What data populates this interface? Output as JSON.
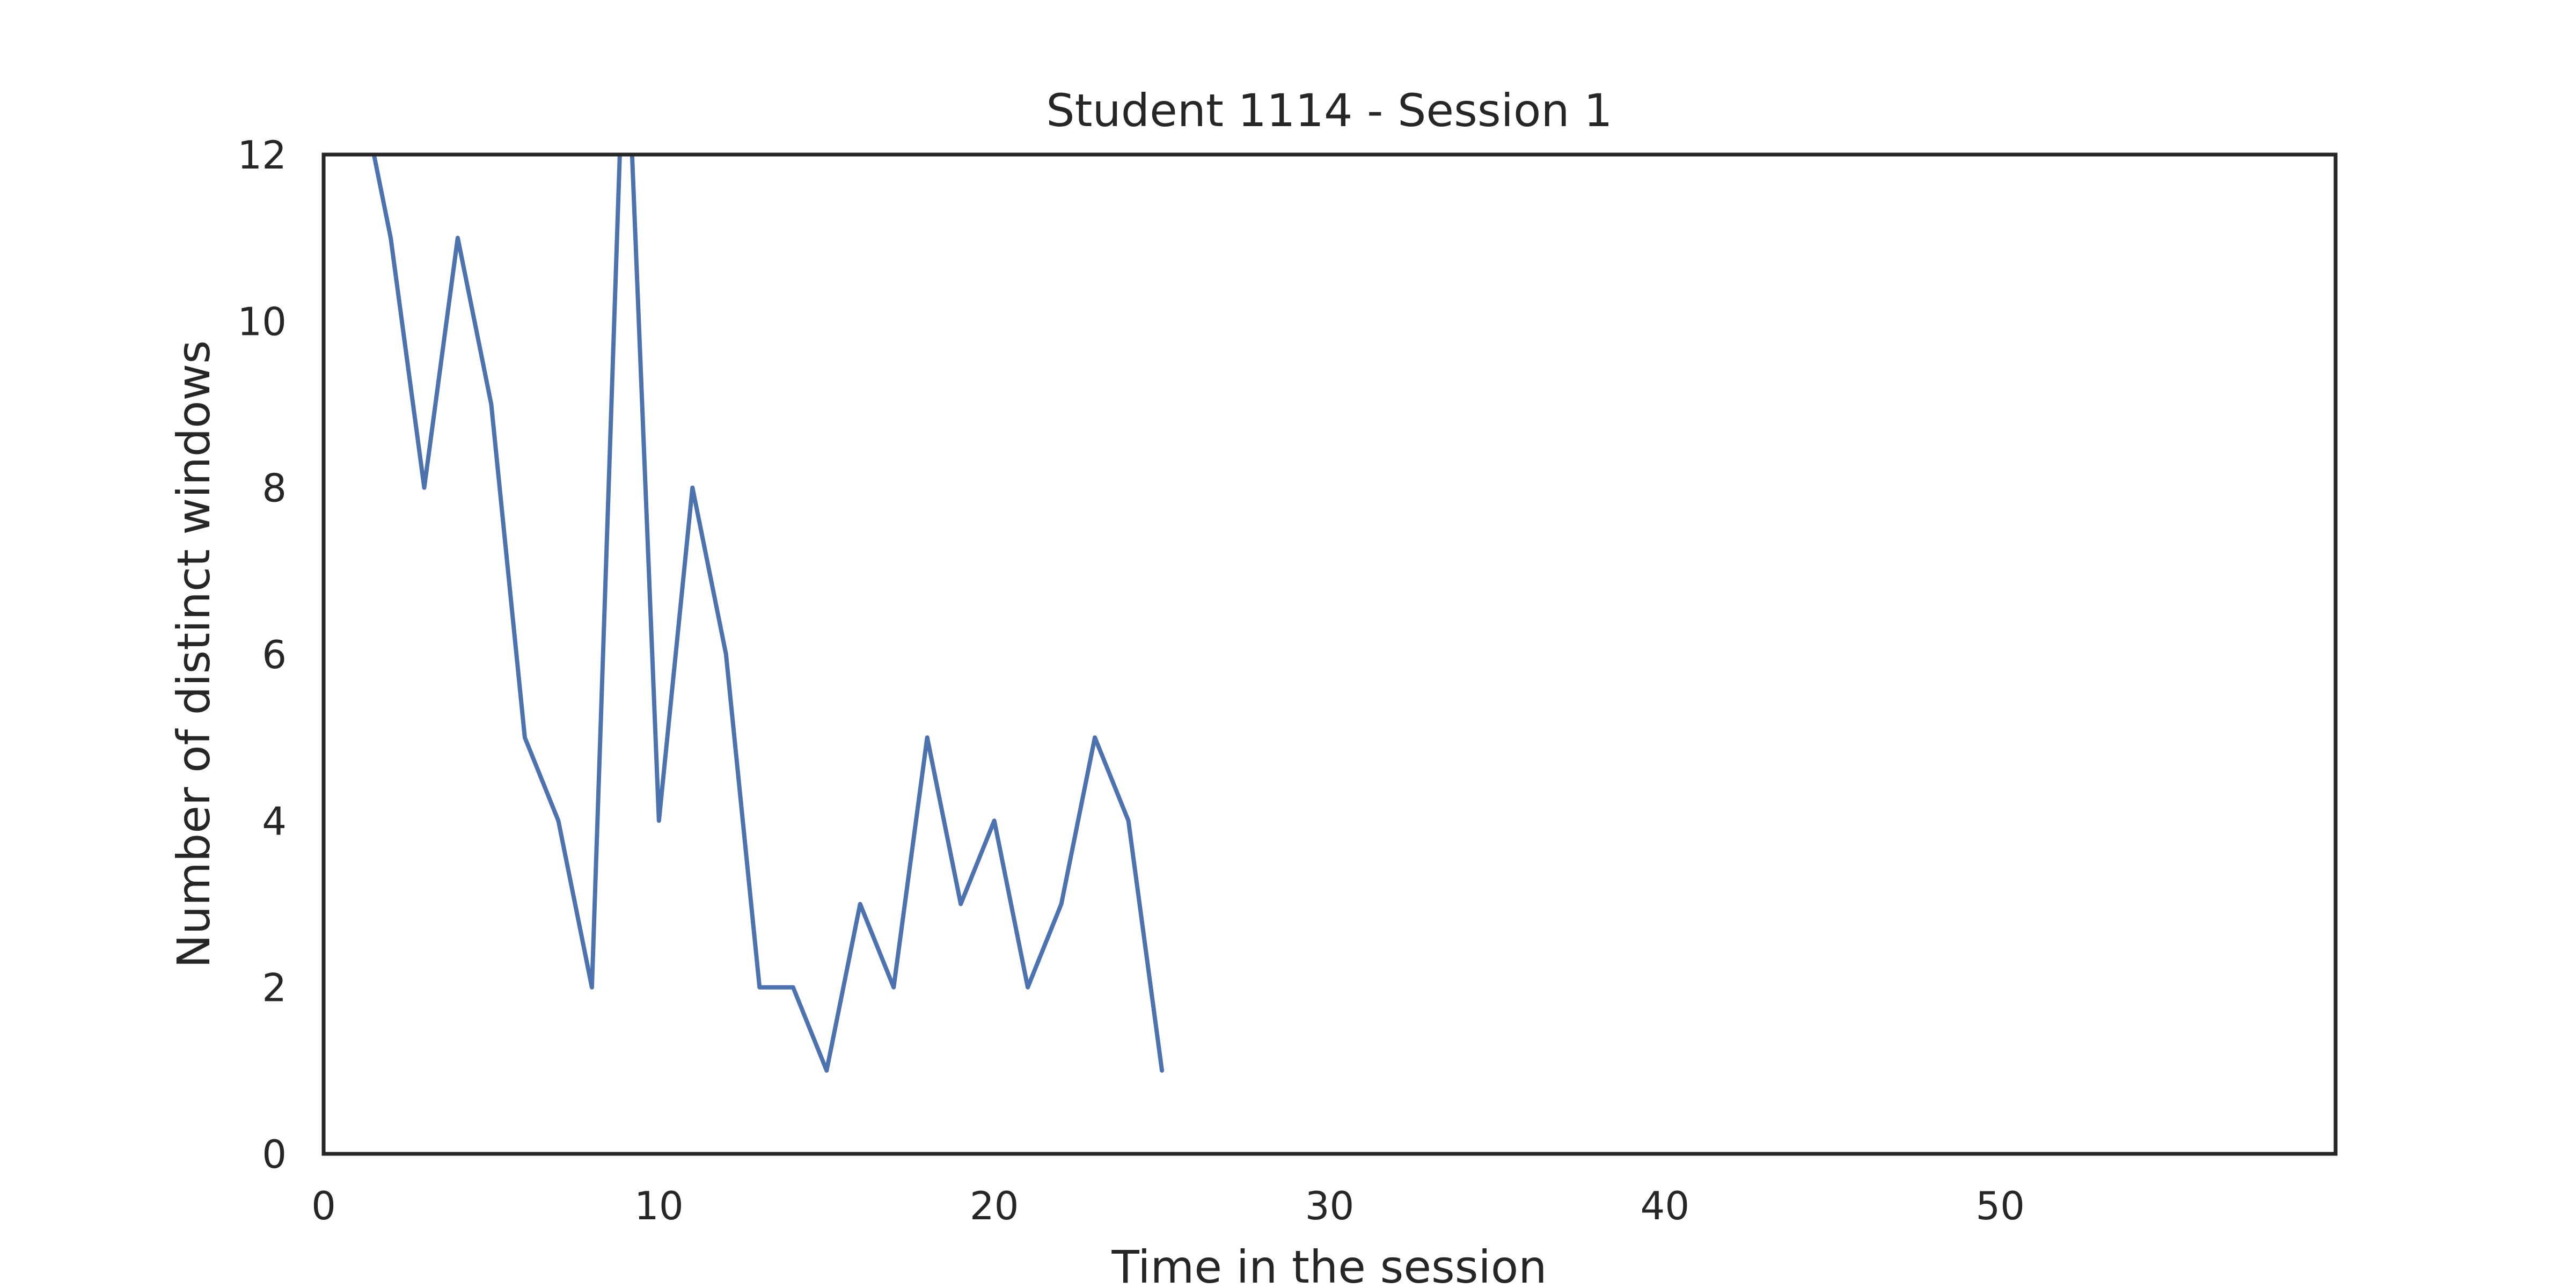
{
  "chart_data": {
    "type": "line",
    "title": "Student 1114 - Session 1",
    "xlabel": "Time in the session",
    "ylabel": "Number of distinct windows",
    "xlim": [
      0,
      60
    ],
    "ylim": [
      0,
      12
    ],
    "x_ticks": [
      0,
      10,
      20,
      30,
      40,
      50
    ],
    "y_ticks": [
      0,
      2,
      4,
      6,
      8,
      10,
      12
    ],
    "grid": false,
    "legend": "none",
    "series": [
      {
        "color": "#4c72b0",
        "x": [
          1,
          2,
          3,
          4,
          5,
          6,
          7,
          8,
          9,
          10,
          11,
          12,
          13,
          14,
          15,
          16,
          17,
          18,
          19,
          20,
          21,
          22,
          23,
          24,
          25
        ],
        "y": [
          13,
          11,
          8,
          11,
          9,
          5,
          4,
          2,
          14,
          4,
          8,
          6,
          2,
          2,
          1,
          3,
          2,
          5,
          3,
          4,
          2,
          3,
          5,
          4,
          1
        ]
      }
    ]
  }
}
